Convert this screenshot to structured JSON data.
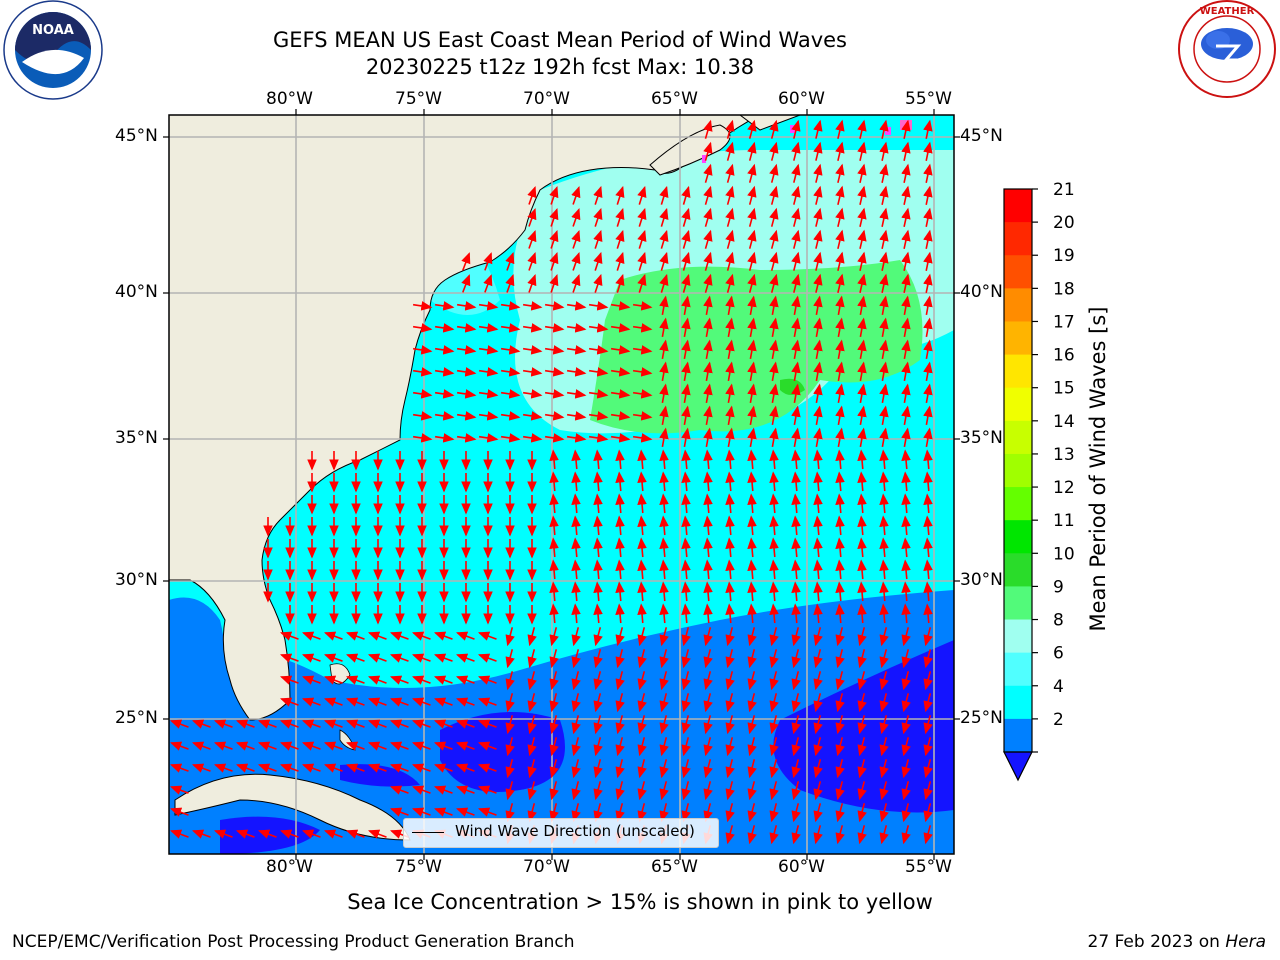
{
  "header": {
    "title_line1": "GEFS MEAN US East Coast Mean Period of Wind Waves",
    "title_line2": "20230225 t12z 192h fcst   Max: 10.38",
    "logo_left": "NOAA",
    "logo_left_ring": "NATIONAL OCEANIC AND ATMOSPHERIC ADMINISTRATION · U.S. DEPARTMENT OF COMMERCE",
    "logo_right_ring": "NATIONAL WEATHER SERVICE"
  },
  "map": {
    "lon_labels": [
      "80°W",
      "75°W",
      "70°W",
      "65°W",
      "60°W",
      "55°W"
    ],
    "lat_labels": [
      "45°N",
      "40°N",
      "35°N",
      "30°N",
      "25°N"
    ],
    "legend_label": "Wind Wave Direction (unscaled)",
    "land_color": "#efedde",
    "ocean_color": "#00ffff",
    "arrow_color": "#ff0000"
  },
  "colorbar": {
    "title": "Mean Period of Wind Waves [s]",
    "ticks": [
      "21",
      "20",
      "19",
      "18",
      "17",
      "16",
      "15",
      "14",
      "13",
      "12",
      "11",
      "10",
      "9",
      "8",
      "6",
      "4",
      "2"
    ],
    "colors": [
      "#ff0000",
      "#ff2800",
      "#ff5000",
      "#ff8c00",
      "#ffb400",
      "#ffe600",
      "#f0ff00",
      "#c8ff00",
      "#a0ff00",
      "#64ff00",
      "#00e600",
      "#2adc2a",
      "#52fa7a",
      "#a0fff0",
      "#50ffff",
      "#00ffff",
      "#0080ff"
    ],
    "extend_color": "#1414ff"
  },
  "footer": {
    "ice_note": "Sea Ice Concentration > 15% is shown in pink to yellow",
    "branch": "NCEP/EMC/Verification Post Processing Product Generation Branch",
    "date_prefix": "27 Feb 2023 on ",
    "machine": "Hera"
  }
}
